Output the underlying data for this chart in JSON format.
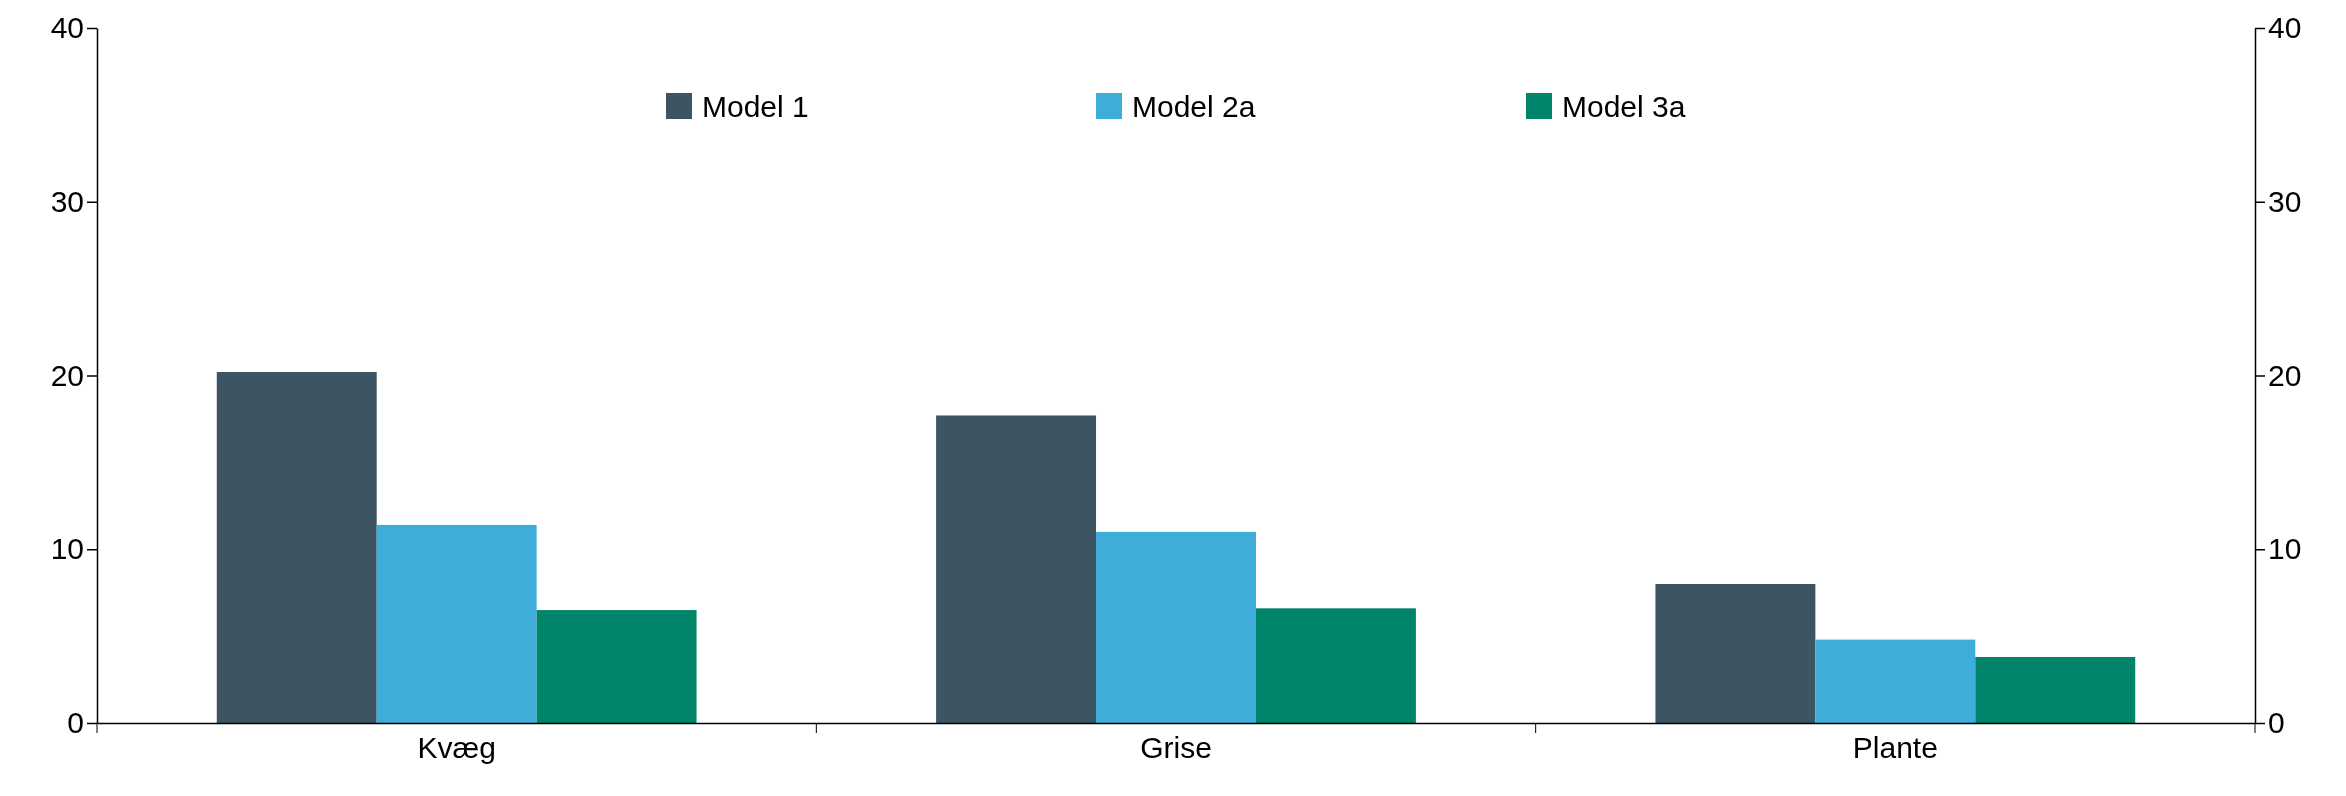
{
  "chart_data": {
    "type": "bar",
    "categories": [
      "Kvæg",
      "Grise",
      "Plante"
    ],
    "series": [
      {
        "name": "Model 1",
        "color": "#3d5463",
        "values": [
          20.2,
          17.7,
          8.0
        ]
      },
      {
        "name": "Model 2a",
        "color": "#3fadda",
        "values": [
          11.4,
          11.0,
          4.8
        ]
      },
      {
        "name": "Model 3a",
        "color": "#00856a",
        "values": [
          6.5,
          6.6,
          3.8
        ]
      }
    ],
    "ylim": [
      0,
      40
    ],
    "yticks": [
      0,
      10,
      20,
      30,
      40
    ],
    "y2lim": [
      0,
      40
    ],
    "y2ticks": [
      0,
      10,
      20,
      30,
      40
    ],
    "grid": false,
    "legend": "top"
  }
}
